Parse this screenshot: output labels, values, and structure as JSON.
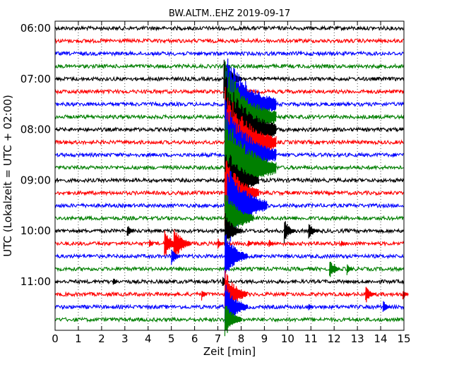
{
  "chart_data": {
    "type": "line",
    "title": "BW.ALTM..EHZ 2019-09-17",
    "xlabel": "Zeit  [min]",
    "ylabel": "UTC (Lokalzeit = UTC + 02:00)",
    "xlim": [
      0,
      15
    ],
    "x_ticks": [
      "0",
      "1",
      "2",
      "3",
      "4",
      "5",
      "6",
      "7",
      "8",
      "9",
      "10",
      "11",
      "12",
      "13",
      "14",
      "15"
    ],
    "y_tick_labels": [
      "06:00",
      "07:00",
      "08:00",
      "09:00",
      "10:00",
      "11:00"
    ],
    "traces_per_hour": 4,
    "trace_minutes": 15,
    "trace_start_times": [
      "06:00",
      "06:15",
      "06:30",
      "06:45",
      "07:00",
      "07:15",
      "07:30",
      "07:45",
      "08:00",
      "08:15",
      "08:30",
      "08:45",
      "09:00",
      "09:15",
      "09:30",
      "09:45",
      "10:00",
      "10:15",
      "10:30",
      "10:45",
      "11:00",
      "11:15",
      "11:30",
      "11:45"
    ],
    "trace_color_cycle": [
      "#000000",
      "#ff0000",
      "#0000ff",
      "#007f00"
    ],
    "grid": "vertical dotted at each minute",
    "events": [
      {
        "trace": 4,
        "minute": 7.25,
        "amplitude": 1.6
      },
      {
        "trace": 5,
        "minute": 7.3,
        "amplitude": 2.0
      },
      {
        "trace": 6,
        "minute": 7.3,
        "amplitude": 4.5
      },
      {
        "trace": 7,
        "minute": 7.3,
        "amplitude": 4.5
      },
      {
        "trace": 8,
        "minute": 7.3,
        "amplitude": 4.5
      },
      {
        "trace": 9,
        "minute": 7.3,
        "amplitude": 4.5
      },
      {
        "trace": 10,
        "minute": 7.3,
        "amplitude": 4.5
      },
      {
        "trace": 11,
        "minute": 7.3,
        "amplitude": 4.5
      },
      {
        "trace": 12,
        "minute": 7.3,
        "amplitude": 3.0
      },
      {
        "trace": 13,
        "minute": 7.3,
        "amplitude": 3.0
      },
      {
        "trace": 14,
        "minute": 7.4,
        "amplitude": 3.5
      },
      {
        "trace": 15,
        "minute": 7.3,
        "amplitude": 2.5
      },
      {
        "trace": 16,
        "minute": 7.3,
        "amplitude": 1.5
      },
      {
        "trace": 16,
        "minute": 3.1,
        "amplitude": 0.6
      },
      {
        "trace": 16,
        "minute": 9.85,
        "amplitude": 1.0
      },
      {
        "trace": 16,
        "minute": 10.9,
        "amplitude": 0.8
      },
      {
        "trace": 17,
        "minute": 4.7,
        "amplitude": 1.2
      },
      {
        "trace": 17,
        "minute": 5.1,
        "amplitude": 1.5
      },
      {
        "trace": 17,
        "minute": 4.05,
        "amplitude": 0.4
      },
      {
        "trace": 17,
        "minute": 7.0,
        "amplitude": 0.5
      },
      {
        "trace": 17,
        "minute": 8.3,
        "amplitude": 0.4
      },
      {
        "trace": 17,
        "minute": 9.2,
        "amplitude": 0.4
      },
      {
        "trace": 17,
        "minute": 12.3,
        "amplitude": 0.3
      },
      {
        "trace": 18,
        "minute": 7.3,
        "amplitude": 2.0
      },
      {
        "trace": 18,
        "minute": 5.0,
        "amplitude": 0.8
      },
      {
        "trace": 19,
        "minute": 11.8,
        "amplitude": 0.8
      },
      {
        "trace": 19,
        "minute": 12.0,
        "amplitude": 0.5
      },
      {
        "trace": 19,
        "minute": 12.55,
        "amplitude": 0.5
      },
      {
        "trace": 20,
        "minute": 2.5,
        "amplitude": 0.4
      },
      {
        "trace": 20,
        "minute": 7.2,
        "amplitude": 0.5
      },
      {
        "trace": 21,
        "minute": 6.3,
        "amplitude": 0.5
      },
      {
        "trace": 21,
        "minute": 13.35,
        "amplitude": 0.8
      },
      {
        "trace": 21,
        "minute": 14.95,
        "amplitude": 0.5
      },
      {
        "trace": 21,
        "minute": 7.3,
        "amplitude": 2.0
      },
      {
        "trace": 22,
        "minute": 14.1,
        "amplitude": 0.6
      },
      {
        "trace": 22,
        "minute": 10.9,
        "amplitude": 0.4
      },
      {
        "trace": 22,
        "minute": 7.3,
        "amplitude": 2.0
      },
      {
        "trace": 23,
        "minute": 7.3,
        "amplitude": 1.5
      }
    ]
  }
}
